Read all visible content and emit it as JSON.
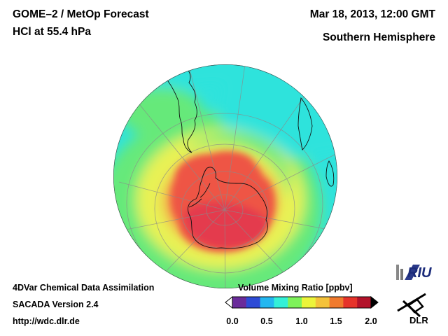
{
  "header": {
    "title_line1": "GOME–2 / MetOp Forecast",
    "title_line2": "HCl at 55.4 hPa",
    "date": "Mar 18, 2013, 12:00 GMT",
    "region": "Southern Hemisphere"
  },
  "footer": {
    "line1": "4DVar Chemical Data Assimilation",
    "line2": "SACADA Version 2.4",
    "url": "http://wdc.dlr.de"
  },
  "colorbar": {
    "title": "Volume Mixing Ratio [ppbv]",
    "ticks": [
      "0.0",
      "0.5",
      "1.0",
      "1.5",
      "2.0"
    ],
    "range": [
      0.0,
      2.0
    ],
    "colors": [
      "#6a2b9a",
      "#2d4bd6",
      "#23b7f0",
      "#33f0d8",
      "#7ef25a",
      "#ecf43a",
      "#f4c23a",
      "#f07a2d",
      "#e6332a",
      "#b3122a"
    ]
  },
  "logos": {
    "riu": "RIU",
    "dlr": "DLR"
  },
  "map_colors": {
    "background": "#2fe3dc",
    "green": "#66e97a",
    "yellow": "#e8f255",
    "orange": "#f4a04a",
    "red": "#ee5544",
    "crimson": "#e43a4e"
  }
}
